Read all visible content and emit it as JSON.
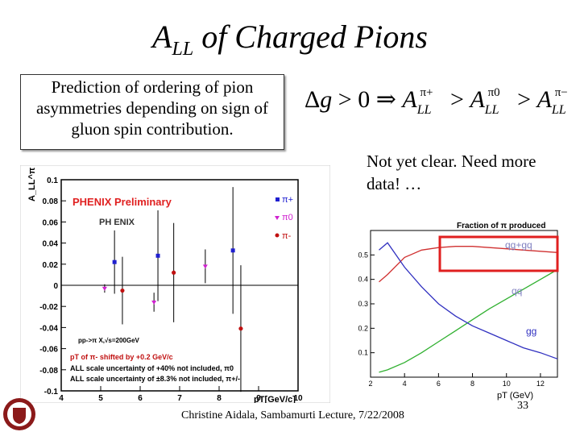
{
  "slide": {
    "title_main": "A",
    "title_sub": "LL",
    "title_rest": " of Charged Pions",
    "prediction_text": "Prediction of ordering of pion asymmetries depending on sign of gluon spin contribution.",
    "formula": "Δg > 0 ⇒ A_LL^{π+} > A_LL^{π0} > A_LL^{π−}",
    "note": "Not yet clear.  Need more data! …",
    "footer": "Christine Aidala, Sambamurti Lecture, 7/22/2008",
    "page_number": "33"
  },
  "chart_data": [
    {
      "type": "scatter",
      "title": "PHENIX Preliminary",
      "logo_text": "PH ENIX",
      "xlabel": "pT[GeV/c]",
      "ylabel": "A_LL^π",
      "xlim": [
        4,
        10
      ],
      "ylim": [
        -0.1,
        0.1
      ],
      "x_ticks": [
        "4",
        "5",
        "6",
        "7",
        "8",
        "9",
        "10"
      ],
      "y_ticks": [
        "-0.1",
        "-0.08",
        "-0.06",
        "-0.04",
        "-0.02",
        "0",
        "0.02",
        "0.04",
        "0.06",
        "0.08",
        "0.1"
      ],
      "series": [
        {
          "name": "π+",
          "color": "#1f1fd0",
          "marker": "square",
          "points": [
            {
              "x": 5.35,
              "y": 0.022,
              "err": 0.03
            },
            {
              "x": 6.45,
              "y": 0.028,
              "err": 0.043
            },
            {
              "x": 8.35,
              "y": 0.033,
              "err": 0.06
            }
          ]
        },
        {
          "name": "π0",
          "color": "#d020d0",
          "marker": "triangle-down",
          "points": [
            {
              "x": 5.1,
              "y": -0.003,
              "err": 0.004
            },
            {
              "x": 6.35,
              "y": -0.016,
              "err": 0.009
            },
            {
              "x": 7.65,
              "y": 0.018,
              "err": 0.016
            }
          ]
        },
        {
          "name": "π-",
          "color": "#c01010",
          "marker": "circle",
          "points": [
            {
              "x": 5.55,
              "y": -0.005,
              "err": 0.032
            },
            {
              "x": 6.85,
              "y": 0.012,
              "err": 0.047
            },
            {
              "x": 8.55,
              "y": -0.041,
              "err": 0.06
            }
          ]
        }
      ],
      "annotations": [
        "pp->π X,√s=200GeV",
        "pT of π- shifted by +0.2 GeV/c",
        "ALL scale uncertainty of +40% not included, π0",
        "ALL scale uncertainty of ±8.3% not included, π+/-"
      ],
      "legend": [
        "π+",
        "π0",
        "π-"
      ],
      "legend_position": "top-right"
    },
    {
      "type": "line",
      "title": "Fraction of π produced",
      "xlabel": "pT (GeV)",
      "xlim": [
        2,
        13
      ],
      "ylim": [
        0,
        0.6
      ],
      "x_ticks": [
        "2",
        "4",
        "6",
        "8",
        "10",
        "12"
      ],
      "y_ticks": [
        "0.1",
        "0.2",
        "0.3",
        "0.4",
        "0.5"
      ],
      "series": [
        {
          "name": "qg+gq",
          "color": "#d03030",
          "x": [
            2.5,
            3,
            4,
            5,
            6,
            7,
            8,
            9,
            10,
            11,
            12,
            13
          ],
          "y": [
            0.39,
            0.42,
            0.49,
            0.52,
            0.53,
            0.535,
            0.535,
            0.53,
            0.525,
            0.52,
            0.515,
            0.51
          ]
        },
        {
          "name": "qq",
          "color": "#30b030",
          "x": [
            2.5,
            3,
            4,
            5,
            6,
            7,
            8,
            9,
            10,
            11,
            12,
            13
          ],
          "y": [
            0.02,
            0.03,
            0.06,
            0.1,
            0.145,
            0.19,
            0.235,
            0.28,
            0.32,
            0.36,
            0.4,
            0.44
          ]
        },
        {
          "name": "gg",
          "color": "#3030c0",
          "x": [
            2.5,
            3,
            4,
            5,
            6,
            7,
            8,
            9,
            10,
            11,
            12,
            13
          ],
          "y": [
            0.52,
            0.55,
            0.45,
            0.37,
            0.3,
            0.25,
            0.21,
            0.18,
            0.15,
            0.12,
            0.1,
            0.075
          ]
        }
      ],
      "highlight": "qg+gq"
    }
  ]
}
